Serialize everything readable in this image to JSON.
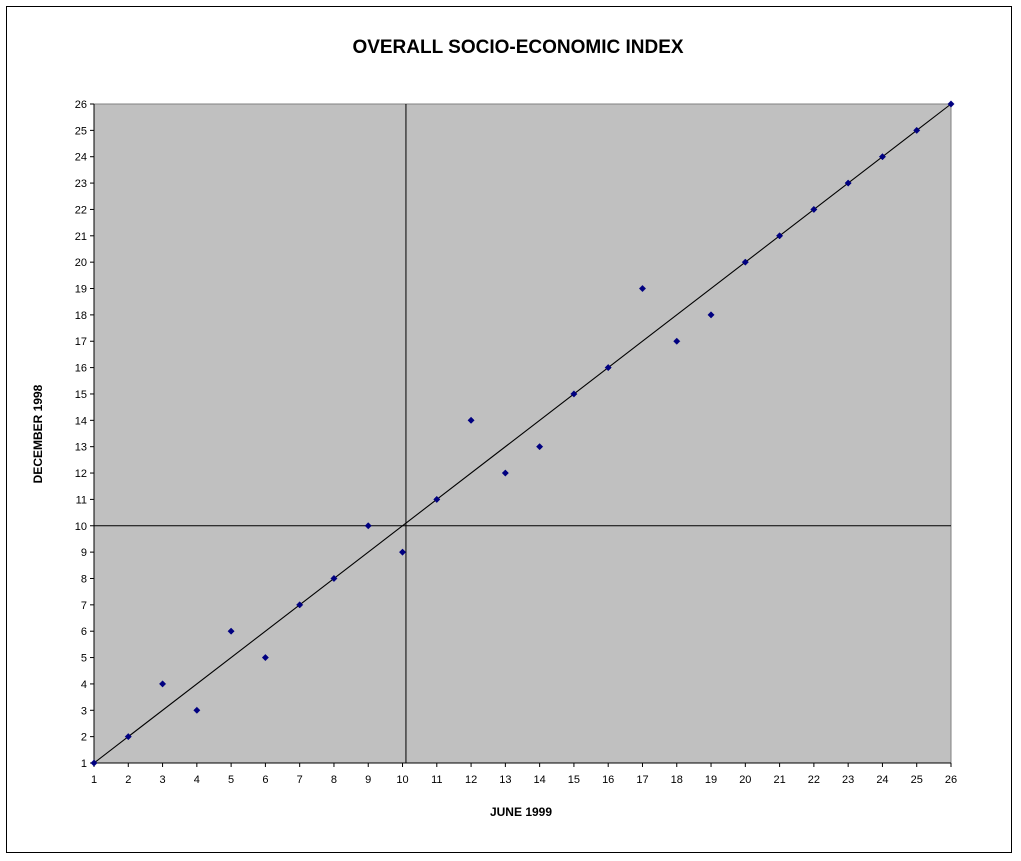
{
  "chart_data": {
    "type": "scatter",
    "title": "OVERALL SOCIO-ECONOMIC INDEX",
    "xlabel": "JUNE 1999",
    "ylabel": "DECEMBER 1998",
    "xlim": [
      1,
      26
    ],
    "ylim": [
      1,
      26
    ],
    "xticks": [
      1,
      2,
      3,
      4,
      5,
      6,
      7,
      8,
      9,
      10,
      11,
      12,
      13,
      14,
      15,
      16,
      17,
      18,
      19,
      20,
      21,
      22,
      23,
      24,
      25,
      26
    ],
    "yticks": [
      1,
      2,
      3,
      4,
      5,
      6,
      7,
      8,
      9,
      10,
      11,
      12,
      13,
      14,
      15,
      16,
      17,
      18,
      19,
      20,
      21,
      22,
      23,
      24,
      25,
      26
    ],
    "grid": false,
    "legend": "none",
    "plot_background": "#c0c0c0",
    "marker_color": "#000080",
    "series": [
      {
        "x": [
          1,
          2,
          3,
          4,
          5,
          6,
          7,
          8,
          9,
          10,
          11,
          12,
          13,
          14,
          15,
          16,
          17,
          18,
          19,
          20,
          21,
          22,
          23,
          24,
          25,
          26
        ],
        "y": [
          1,
          2,
          4,
          3,
          6,
          5,
          7,
          8,
          10,
          9,
          11,
          14,
          12,
          13,
          15,
          16,
          19,
          17,
          18,
          20,
          21,
          22,
          23,
          24,
          25,
          26
        ]
      }
    ],
    "reference_lines": {
      "diagonal": {
        "from": [
          1,
          1
        ],
        "to": [
          26,
          26
        ]
      },
      "vertical_x": 10.1,
      "horizontal_y": 10
    }
  }
}
